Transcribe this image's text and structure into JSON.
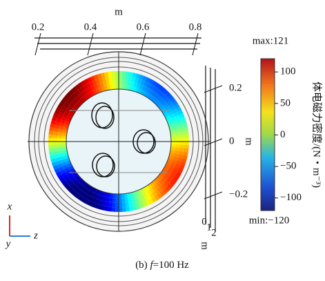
{
  "chart_data": {
    "type": "field-map",
    "top_axis": {
      "label": "m",
      "ticks": [
        0.2,
        0.4,
        0.6,
        0.8
      ]
    },
    "right_axis": {
      "label": "m",
      "ticks": [
        0.2,
        0,
        {
          "value": -0.2,
          "label": "−0.2"
        }
      ]
    },
    "depth_axis": {
      "label": "m",
      "ticks": [
        0,
        1,
        2
      ]
    },
    "colorbar": {
      "max": {
        "value": 121,
        "label": "max:121"
      },
      "min": {
        "value": -120,
        "label": "min:−120"
      },
      "ticks": [
        100,
        50,
        0,
        {
          "value": -50,
          "label": "−50"
        },
        {
          "value": -100,
          "label": "−100"
        }
      ],
      "label": "体电磁力密度/(N・m⁻³)"
    },
    "triad": {
      "x": "x",
      "y": "y",
      "z": "z"
    },
    "caption": {
      "prefix": "(b) ",
      "symbol": "f",
      "rest": "=100 Hz"
    }
  }
}
